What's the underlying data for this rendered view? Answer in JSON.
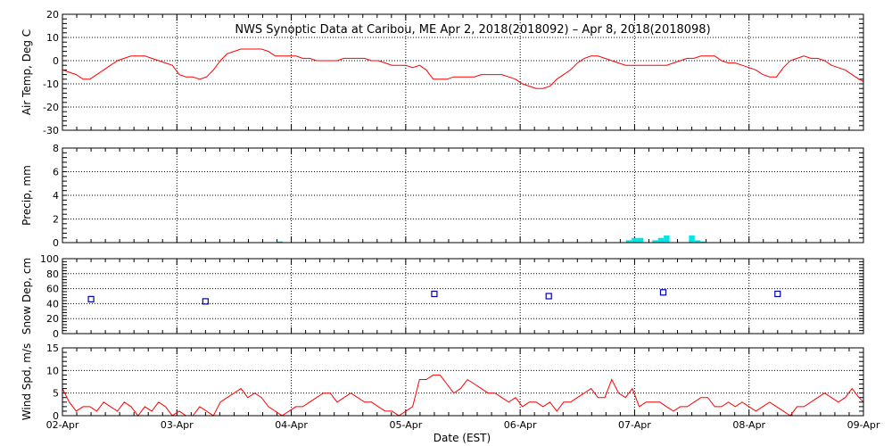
{
  "title": "NWS Synoptic Data at Caribou, ME   Apr  2, 2018(2018092) – Apr  8, 2018(2018098)",
  "xlabel": "Date (EST)",
  "x_ticks": [
    "02-Apr",
    "03-Apr",
    "04-Apr",
    "05-Apr",
    "06-Apr",
    "07-Apr",
    "08-Apr",
    "09-Apr"
  ],
  "chart_data": [
    {
      "type": "line",
      "panel": "air_temp",
      "ylabel": "Air Temp, Deg C",
      "ylim": [
        -30,
        20
      ],
      "yticks": [
        20,
        10,
        0,
        -10,
        -20,
        -30
      ],
      "xlim_days": [
        0,
        7
      ],
      "grid": true,
      "color": "#ff0000",
      "x": [
        0,
        0.06,
        0.12,
        0.18,
        0.24,
        0.3,
        0.36,
        0.42,
        0.48,
        0.54,
        0.6,
        0.66,
        0.72,
        0.78,
        0.84,
        0.9,
        0.96,
        1.02,
        1.08,
        1.14,
        1.2,
        1.26,
        1.32,
        1.38,
        1.44,
        1.5,
        1.56,
        1.62,
        1.68,
        1.74,
        1.8,
        1.86,
        1.92,
        1.98,
        2.04,
        2.1,
        2.16,
        2.22,
        2.28,
        2.34,
        2.4,
        2.46,
        2.52,
        2.58,
        2.64,
        2.7,
        2.76,
        2.82,
        2.88,
        2.94,
        3.0,
        3.06,
        3.12,
        3.18,
        3.24,
        3.3,
        3.36,
        3.42,
        3.48,
        3.54,
        3.6,
        3.66,
        3.72,
        3.78,
        3.84,
        3.9,
        3.96,
        4.02,
        4.08,
        4.14,
        4.2,
        4.26,
        4.32,
        4.38,
        4.44,
        4.5,
        4.56,
        4.62,
        4.68,
        4.74,
        4.8,
        4.86,
        4.92,
        4.98,
        5.04,
        5.1,
        5.16,
        5.22,
        5.28,
        5.34,
        5.4,
        5.46,
        5.52,
        5.58,
        5.64,
        5.7,
        5.76,
        5.82,
        5.88,
        5.94,
        6.0,
        6.06,
        6.12,
        6.18,
        6.24,
        6.3,
        6.36,
        6.42,
        6.48,
        6.54,
        6.6,
        6.66,
        6.72,
        6.78,
        6.84,
        6.9,
        6.96,
        7.0
      ],
      "values": [
        -4,
        -5,
        -6,
        -8,
        -8,
        -6,
        -4,
        -2,
        0,
        1,
        2,
        2,
        2,
        1,
        0,
        -1,
        -2,
        -6,
        -7,
        -7,
        -8,
        -7,
        -4,
        0,
        3,
        4,
        5,
        5,
        5,
        5,
        4,
        2,
        2,
        2,
        2,
        1,
        1,
        0,
        0,
        0,
        0,
        1,
        1,
        1,
        1,
        0,
        0,
        -1,
        -2,
        -2,
        -2,
        -3,
        -2,
        -4,
        -8,
        -8,
        -8,
        -7,
        -7,
        -7,
        -7,
        -6,
        -6,
        -6,
        -6,
        -7,
        -8,
        -10,
        -11,
        -12,
        -12,
        -11,
        -8,
        -6,
        -4,
        -1,
        1,
        2,
        2,
        1,
        0,
        -1,
        -2,
        -2,
        -2,
        -2,
        -2,
        -2,
        -2,
        -1,
        0,
        1,
        1,
        2,
        2,
        2,
        0,
        -1,
        -1,
        -2,
        -3,
        -4,
        -6,
        -7,
        -7,
        -3,
        0,
        1,
        2,
        1,
        1,
        0,
        -2,
        -3,
        -4,
        -6,
        -8,
        -9
      ]
    },
    {
      "type": "bar",
      "panel": "precip",
      "ylabel": "Precip, mm",
      "ylim": [
        0,
        8
      ],
      "yticks": [
        8,
        6,
        4,
        2,
        0
      ],
      "xlim_days": [
        0,
        7
      ],
      "grid": true,
      "color": "#00e5e5",
      "x": [
        1.9,
        4.95,
        5.0,
        5.05,
        5.18,
        5.23,
        5.28,
        5.5,
        5.55,
        5.6
      ],
      "values": [
        0.1,
        0.2,
        0.4,
        0.4,
        0.2,
        0.4,
        0.6,
        0.6,
        0.2,
        0.1
      ]
    },
    {
      "type": "scatter",
      "panel": "snow_depth",
      "ylabel": "Snow Dep, cm",
      "ylim": [
        0,
        100
      ],
      "yticks": [
        100,
        80,
        60,
        40,
        20,
        0
      ],
      "xlim_days": [
        0,
        7
      ],
      "grid": true,
      "color": "#0000aa",
      "x": [
        0.25,
        1.25,
        2.25,
        3.25,
        4.25,
        5.25,
        6.25
      ],
      "values": [
        46,
        43,
        null,
        53,
        50,
        55,
        53
      ]
    },
    {
      "type": "line",
      "panel": "wind_speed",
      "ylabel": "Wind Spd, m/s",
      "ylim": [
        0,
        15
      ],
      "yticks": [
        15,
        10,
        5,
        0
      ],
      "xlim_days": [
        0,
        7
      ],
      "grid": true,
      "color": "#ff0000",
      "x": [
        0,
        0.06,
        0.12,
        0.18,
        0.24,
        0.3,
        0.36,
        0.42,
        0.48,
        0.54,
        0.6,
        0.66,
        0.72,
        0.78,
        0.84,
        0.9,
        0.96,
        1.02,
        1.08,
        1.14,
        1.2,
        1.26,
        1.32,
        1.38,
        1.44,
        1.5,
        1.56,
        1.62,
        1.68,
        1.74,
        1.8,
        1.86,
        1.92,
        1.98,
        2.04,
        2.1,
        2.16,
        2.22,
        2.28,
        2.34,
        2.4,
        2.46,
        2.52,
        2.58,
        2.64,
        2.7,
        2.76,
        2.82,
        2.88,
        2.94,
        3.0,
        3.06,
        3.12,
        3.18,
        3.24,
        3.3,
        3.36,
        3.42,
        3.48,
        3.54,
        3.6,
        3.66,
        3.72,
        3.78,
        3.84,
        3.9,
        3.96,
        4.02,
        4.08,
        4.14,
        4.2,
        4.26,
        4.32,
        4.38,
        4.44,
        4.5,
        4.56,
        4.62,
        4.68,
        4.74,
        4.8,
        4.86,
        4.92,
        4.98,
        5.04,
        5.1,
        5.16,
        5.22,
        5.28,
        5.34,
        5.4,
        5.46,
        5.52,
        5.58,
        5.64,
        5.7,
        5.76,
        5.82,
        5.88,
        5.94,
        6.0,
        6.06,
        6.12,
        6.18,
        6.24,
        6.3,
        6.36,
        6.42,
        6.48,
        6.54,
        6.6,
        6.66,
        6.72,
        6.78,
        6.84,
        6.9,
        6.96,
        7.0
      ],
      "values": [
        6,
        3,
        1,
        2,
        2,
        1,
        3,
        2,
        1,
        3,
        2,
        0,
        2,
        1,
        3,
        2,
        0,
        1,
        0,
        0,
        2,
        1,
        0,
        3,
        4,
        5,
        6,
        4,
        5,
        4,
        2,
        1,
        0,
        1,
        2,
        2,
        3,
        4,
        5,
        5,
        3,
        4,
        5,
        4,
        3,
        3,
        2,
        1,
        1,
        0,
        1,
        2,
        8,
        8,
        9,
        9,
        7,
        5,
        6,
        8,
        7,
        6,
        5,
        5,
        4,
        3,
        4,
        2,
        3,
        3,
        2,
        3,
        1,
        3,
        3,
        4,
        5,
        6,
        4,
        4,
        8,
        5,
        4,
        6,
        2,
        3,
        3,
        3,
        2,
        1,
        2,
        2,
        3,
        4,
        4,
        2,
        2,
        3,
        2,
        3,
        2,
        1,
        2,
        3,
        2,
        1,
        0,
        2,
        2,
        3,
        4,
        5,
        4,
        3,
        4,
        6,
        4,
        3
      ]
    }
  ]
}
